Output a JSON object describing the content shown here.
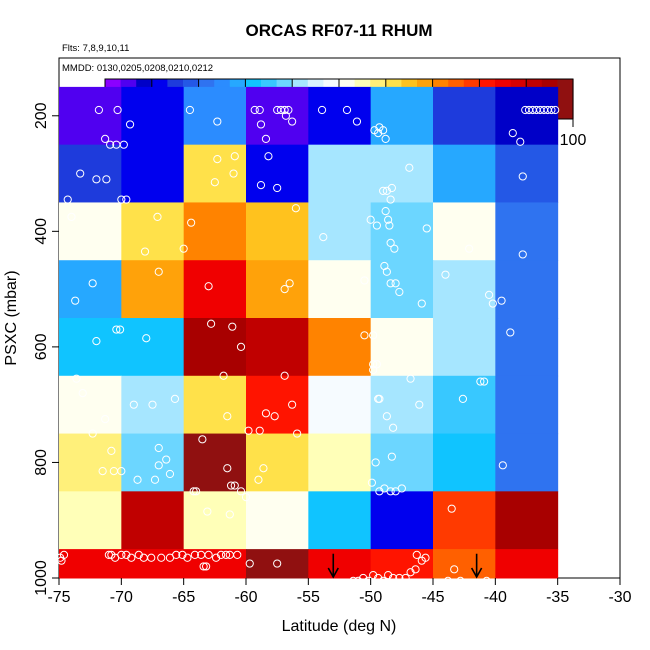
{
  "chart_data": {
    "type": "heatmap",
    "title": "ORCAS RF07-11 RHUM",
    "subtitle_flights": "Flts: 7,8,9,10,11",
    "subtitle_dates": "MMDD: 0130,0205,0208,0210,0212",
    "xlabel": "Latitude (deg N)",
    "ylabel": "PSXC (mbar)",
    "xlim": [
      -75,
      -30
    ],
    "ylim": [
      1000,
      100
    ],
    "y_inverted": true,
    "grid": false,
    "x_ticks": [
      -75,
      -70,
      -65,
      -60,
      -55,
      -50,
      -45,
      -40,
      -35,
      -30
    ],
    "y_ticks": [
      200,
      400,
      600,
      800,
      1000
    ],
    "x_bins": [
      -75,
      -70,
      -65,
      -60,
      -55,
      -50,
      -45,
      -40,
      -35
    ],
    "y_bins": [
      100,
      250,
      350,
      450,
      550,
      650,
      750,
      850,
      950,
      1000
    ],
    "y_display_top": 150,
    "colorbar": {
      "min": 0,
      "max": 100,
      "ticks": [
        10,
        20,
        30,
        40,
        50,
        60,
        70,
        80,
        90,
        100
      ],
      "colors": [
        "#8b00ff",
        "#5000f0",
        "#0000c8",
        "#0000ee",
        "#1e3bdc",
        "#2458e6",
        "#2f73f0",
        "#2b8cff",
        "#26a8ff",
        "#10c4ff",
        "#38c8ff",
        "#6cd6ff",
        "#a6e6ff",
        "#d8f2ff",
        "#f6fbff",
        "#fffff0",
        "#ffffb8",
        "#fff07a",
        "#ffe14a",
        "#ffc21e",
        "#ffa20a",
        "#ff8300",
        "#ff6000",
        "#ff3a00",
        "#ff1400",
        "#f00000",
        "#d60000",
        "#c00000",
        "#a80000",
        "#901010"
      ]
    },
    "values": [
      [
        5,
        12,
        26,
        5,
        10,
        27,
        14,
        7
      ],
      [
        14,
        13,
        61,
        13,
        40,
        40,
        29,
        19
      ],
      [
        53,
        62,
        70,
        65,
        41,
        38,
        52,
        20
      ],
      [
        27,
        68,
        84,
        67,
        53,
        37,
        40,
        20
      ],
      [
        33,
        32,
        96,
        93,
        73,
        51,
        42,
        20
      ],
      [
        51,
        40,
        61,
        82,
        49,
        43,
        34,
        20
      ],
      [
        58,
        38,
        97,
        62,
        54,
        39,
        30,
        20
      ],
      [
        54,
        91,
        56,
        52,
        31,
        10,
        77,
        95
      ],
      [
        86,
        86,
        86,
        97,
        86,
        81,
        75,
        86
      ]
    ],
    "points": [
      [
        -71.8,
        190
      ],
      [
        -70.3,
        190
      ],
      [
        -70.9,
        250
      ],
      [
        -70.4,
        250
      ],
      [
        -69.8,
        250
      ],
      [
        -69.3,
        215
      ],
      [
        -71.3,
        240
      ],
      [
        -73.3,
        300
      ],
      [
        -72.0,
        310
      ],
      [
        -71.2,
        310
      ],
      [
        -70.0,
        345
      ],
      [
        -69.6,
        345
      ],
      [
        -74.3,
        345
      ],
      [
        -74.0,
        375
      ],
      [
        -73.7,
        520
      ],
      [
        -72.3,
        490
      ],
      [
        -72.0,
        590
      ],
      [
        -70.4,
        570
      ],
      [
        -70.1,
        570
      ],
      [
        -68.0,
        585
      ],
      [
        -67.1,
        375
      ],
      [
        -68.1,
        435
      ],
      [
        -67.0,
        470
      ],
      [
        -64.5,
        190
      ],
      [
        -62.3,
        210
      ],
      [
        -61.0,
        300
      ],
      [
        -60.9,
        270
      ],
      [
        -59.3,
        190
      ],
      [
        -58.9,
        190
      ],
      [
        -58.8,
        215
      ],
      [
        -58.4,
        240
      ],
      [
        -58.2,
        270
      ],
      [
        -58.8,
        320
      ],
      [
        -57.5,
        325
      ],
      [
        -57.5,
        190
      ],
      [
        -57.2,
        190
      ],
      [
        -56.9,
        190
      ],
      [
        -56.8,
        200
      ],
      [
        -56.6,
        190
      ],
      [
        -56.3,
        210
      ],
      [
        -56.0,
        360
      ],
      [
        -53.9,
        190
      ],
      [
        -51.9,
        190
      ],
      [
        -53.8,
        410
      ],
      [
        -51.1,
        210
      ],
      [
        -50.0,
        380
      ],
      [
        -49.5,
        390
      ],
      [
        -49.3,
        220
      ],
      [
        -49.0,
        225
      ],
      [
        -48.8,
        240
      ],
      [
        -49.0,
        330
      ],
      [
        -48.7,
        330
      ],
      [
        -48.4,
        345
      ],
      [
        -48.3,
        325
      ],
      [
        -48.8,
        365
      ],
      [
        -48.6,
        380
      ],
      [
        -48.5,
        390
      ],
      [
        -48.4,
        420
      ],
      [
        -48.1,
        430
      ],
      [
        -48.9,
        460
      ],
      [
        -48.7,
        470
      ],
      [
        -48.4,
        490
      ],
      [
        -48.0,
        490
      ],
      [
        -47.7,
        505
      ],
      [
        -46.9,
        290
      ],
      [
        -45.5,
        395
      ],
      [
        -49.4,
        230
      ],
      [
        -49.7,
        225
      ],
      [
        -50.5,
        485
      ],
      [
        -50.5,
        580
      ],
      [
        -49.8,
        580
      ],
      [
        -49.8,
        630
      ],
      [
        -49.5,
        630
      ],
      [
        -49.4,
        690
      ],
      [
        -48.7,
        720
      ],
      [
        -48.2,
        740
      ],
      [
        -48.3,
        790
      ],
      [
        -49.8,
        640
      ],
      [
        -49.3,
        690
      ],
      [
        -49.6,
        800
      ],
      [
        -49.9,
        835
      ],
      [
        -49.3,
        850
      ],
      [
        -48.9,
        845
      ],
      [
        -48.4,
        850
      ],
      [
        -48.0,
        850
      ],
      [
        -47.5,
        845
      ],
      [
        -46.8,
        655
      ],
      [
        -46.1,
        700
      ],
      [
        -45.9,
        525
      ],
      [
        -44.0,
        475
      ],
      [
        -42.6,
        690
      ],
      [
        -42.1,
        430
      ],
      [
        -41.2,
        660
      ],
      [
        -40.9,
        660
      ],
      [
        -40.5,
        510
      ],
      [
        -40.2,
        525
      ],
      [
        -39.5,
        520
      ],
      [
        -39.4,
        805
      ],
      [
        -38.8,
        575
      ],
      [
        -38.6,
        230
      ],
      [
        -38.0,
        245
      ],
      [
        -37.8,
        305
      ],
      [
        -37.8,
        440
      ],
      [
        -37.6,
        190
      ],
      [
        -37.3,
        190
      ],
      [
        -37.0,
        190
      ],
      [
        -36.7,
        190
      ],
      [
        -36.4,
        190
      ],
      [
        -36.1,
        190
      ],
      [
        -35.8,
        190
      ],
      [
        -35.5,
        190
      ],
      [
        -35.2,
        190
      ],
      [
        -69.0,
        700
      ],
      [
        -67.5,
        700
      ],
      [
        -67.0,
        775
      ],
      [
        -65.7,
        690
      ],
      [
        -63.5,
        760
      ],
      [
        -63.1,
        885
      ],
      [
        -62.8,
        560
      ],
      [
        -61.8,
        650
      ],
      [
        -61.5,
        720
      ],
      [
        -61.1,
        565
      ],
      [
        -60.4,
        600
      ],
      [
        -59.8,
        745
      ],
      [
        -58.9,
        745
      ],
      [
        -58.4,
        715
      ],
      [
        -57.7,
        720
      ],
      [
        -56.9,
        650
      ],
      [
        -56.3,
        700
      ],
      [
        -55.9,
        750
      ],
      [
        -56.9,
        500
      ],
      [
        -56.5,
        490
      ],
      [
        -62.3,
        275
      ],
      [
        -62.5,
        315
      ],
      [
        -63.0,
        495
      ],
      [
        -64.4,
        385
      ],
      [
        -65.0,
        430
      ],
      [
        -64.0,
        850
      ],
      [
        -64.2,
        850
      ],
      [
        -61.5,
        810
      ],
      [
        -61.2,
        840
      ],
      [
        -60.9,
        840
      ],
      [
        -60.4,
        850
      ],
      [
        -60.0,
        860
      ],
      [
        -59.0,
        830
      ],
      [
        -58.6,
        810
      ],
      [
        -61.3,
        890
      ],
      [
        -73.6,
        655
      ],
      [
        -73.1,
        680
      ],
      [
        -72.3,
        750
      ],
      [
        -71.3,
        725
      ],
      [
        -70.8,
        780
      ],
      [
        -70.6,
        815
      ],
      [
        -70.0,
        815
      ],
      [
        -71.5,
        815
      ],
      [
        -68.7,
        830
      ],
      [
        -67.3,
        830
      ],
      [
        -67.0,
        805
      ],
      [
        -66.4,
        795
      ],
      [
        -66.1,
        820
      ],
      [
        -71.0,
        960
      ],
      [
        -70.8,
        960
      ],
      [
        -70.5,
        965
      ],
      [
        -70.0,
        960
      ],
      [
        -69.6,
        960
      ],
      [
        -69.2,
        965
      ],
      [
        -68.6,
        960
      ],
      [
        -68.2,
        965
      ],
      [
        -67.6,
        965
      ],
      [
        -66.8,
        965
      ],
      [
        -66.1,
        965
      ],
      [
        -65.6,
        960
      ],
      [
        -65.1,
        960
      ],
      [
        -64.7,
        965
      ],
      [
        -64.1,
        960
      ],
      [
        -63.6,
        960
      ],
      [
        -63.0,
        960
      ],
      [
        -62.4,
        965
      ],
      [
        -62.0,
        960
      ],
      [
        -61.6,
        960
      ],
      [
        -61.3,
        960
      ],
      [
        -60.7,
        960
      ],
      [
        -59.7,
        975
      ],
      [
        -57.5,
        975
      ],
      [
        -63.4,
        980
      ],
      [
        -63.2,
        980
      ],
      [
        -74.6,
        960
      ],
      [
        -74.9,
        965
      ],
      [
        -74.8,
        970
      ],
      [
        -51.4,
        1005
      ],
      [
        -51.0,
        1005
      ],
      [
        -50.6,
        1000
      ],
      [
        -50.2,
        1005
      ],
      [
        -49.8,
        995
      ],
      [
        -49.4,
        1000
      ],
      [
        -49.0,
        1005
      ],
      [
        -48.6,
        995
      ],
      [
        -48.2,
        1000
      ],
      [
        -47.7,
        1000
      ],
      [
        -47.2,
        1000
      ],
      [
        -46.8,
        990
      ],
      [
        -46.4,
        985
      ],
      [
        -45.9,
        970
      ],
      [
        -45.6,
        965
      ],
      [
        -46.3,
        960
      ],
      [
        -43.8,
        1005
      ],
      [
        -42.8,
        1005
      ],
      [
        -40.7,
        1005
      ],
      [
        -43.3,
        985
      ],
      [
        -43.5,
        880
      ]
    ],
    "arrows": [
      -53.0,
      -41.5
    ]
  }
}
